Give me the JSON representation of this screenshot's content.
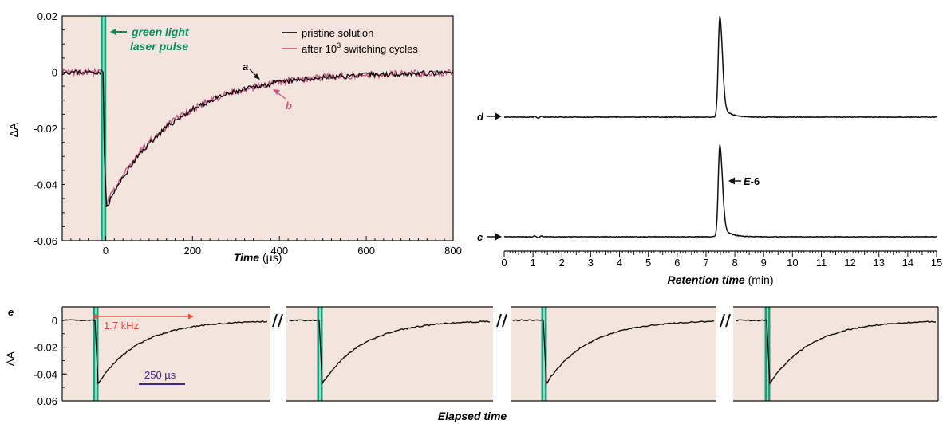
{
  "colors": {
    "plot_bg": "#f3e4dd",
    "laser": "#17a07a",
    "laser_text": "#0d8a5c",
    "pristine": "#111111",
    "cycled": "#c9578a",
    "freq_arrow": "#f04a3a",
    "scale_bar": "#3b2a8a"
  },
  "chart_data": [
    {
      "id": "transient",
      "type": "line",
      "xlabel_main": "Time",
      "xlabel_unit": "(µs)",
      "ylabel": "∆A",
      "xlim": [
        -100,
        800
      ],
      "ylim": [
        -0.06,
        0.02
      ],
      "xticks": [
        0,
        200,
        400,
        600,
        800
      ],
      "yticks": [
        0.02,
        0,
        -0.02,
        -0.04,
        -0.06
      ],
      "ytick_labels": [
        "0.02",
        "0",
        "-0.02",
        "-0.04",
        "-0.06"
      ],
      "laser_pulse_x": -5,
      "laser_label_line1": "green light",
      "laser_label_line2": "laser pulse",
      "legend": {
        "placement": "top-right",
        "pristine": "pristine solution",
        "cycled_prefix": "after 10",
        "cycled_sup": "3",
        "cycled_suffix": " switching cycles"
      },
      "series": [
        {
          "name": "pristine solution",
          "baseline": 0,
          "min_value": -0.048,
          "min_x": 2,
          "tau_us": 155
        },
        {
          "name": "after 10³ switching cycles",
          "baseline": 0,
          "min_value": -0.047,
          "min_x": 2,
          "tau_us": 155
        }
      ],
      "annotation_a": {
        "label": "a",
        "x": 370,
        "y": -0.0075
      },
      "annotation_b": {
        "label": "b",
        "x": 380,
        "y": -0.0095
      }
    },
    {
      "id": "hplc",
      "type": "line",
      "xlabel_main": "Retention time",
      "xlabel_unit": "(min)",
      "xlim": [
        0,
        15
      ],
      "xticks": [
        0,
        1,
        2,
        3,
        4,
        5,
        6,
        7,
        8,
        9,
        10,
        11,
        12,
        13,
        14,
        15
      ],
      "series": [
        {
          "name": "d",
          "peak_x": 7.48,
          "peak_height": 1.0
        },
        {
          "name": "c",
          "peak_x": 7.48,
          "peak_height": 0.91,
          "peak_label": "E-6"
        }
      ]
    },
    {
      "id": "cycles",
      "type": "line",
      "panel_label": "e",
      "ylabel": "∆A",
      "xlabel": "Elapsed time",
      "ylim": [
        -0.06,
        0.01
      ],
      "yticks": [
        0,
        -0.02,
        -0.04,
        -0.06
      ],
      "ytick_labels": [
        "0",
        "-0.02",
        "-0.04",
        "-0.06"
      ],
      "segments": 4,
      "min_value": -0.047,
      "frequency_label": "1.7 kHz",
      "scale_bar_label": "250 µs"
    }
  ]
}
